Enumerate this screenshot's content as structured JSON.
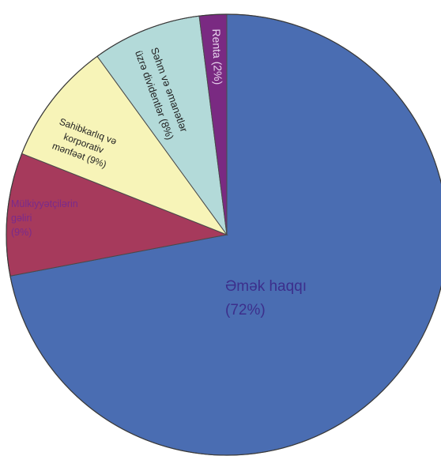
{
  "chart_data": {
    "type": "pie",
    "start": "top",
    "direction": "clockwise",
    "slices": [
      {
        "label_lines": [
          "Əmək haqqı",
          "(72%)"
        ],
        "value": 72,
        "color": "#4a6db2",
        "label_color": "#3c2f8c"
      },
      {
        "label_lines": [
          "Mülkiyyətçilərin",
          "gəliri",
          "(9%)"
        ],
        "value": 9,
        "color": "#a63a5c",
        "label_color": "#7a2a8c"
      },
      {
        "label_lines": [
          "Sahibkarlıq və",
          "korporativ",
          "mənfəət (9%)"
        ],
        "value": 9,
        "color": "#f7f4b8",
        "label_color": "#222222"
      },
      {
        "label_lines": [
          "Səhm və əmanətlər",
          "üzrə dividentlər (8%)"
        ],
        "value": 8,
        "color": "#b3dad9",
        "label_color": "#222222"
      },
      {
        "label_lines": [
          "Renta (2%)"
        ],
        "value": 2,
        "color": "#7a2a82",
        "label_color": "#e8d4ee"
      }
    ]
  }
}
